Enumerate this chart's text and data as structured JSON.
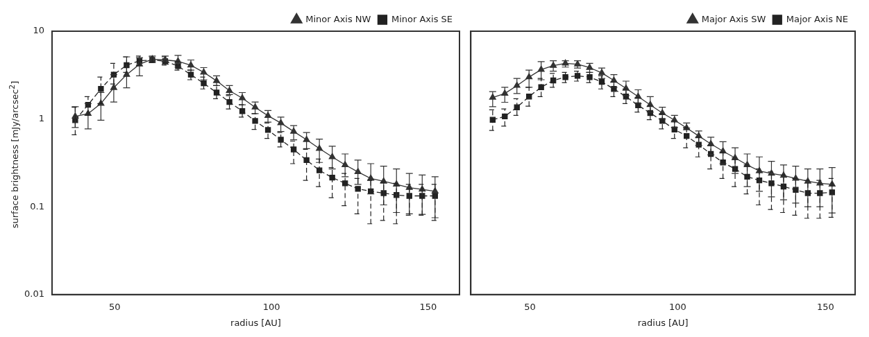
{
  "chart_data": [
    {
      "type": "line",
      "xlabel": "radius [AU]",
      "ylabel": "surface brightness [mJy/arcsec$^{2}$]",
      "xlim": [
        30,
        160
      ],
      "ylim": [
        0.01,
        10
      ],
      "xticks": [
        50,
        100,
        150
      ],
      "yticks": [
        0.01,
        0.1,
        1,
        10
      ],
      "log": "y",
      "grid": false,
      "legend": "top right",
      "x": [
        37.4,
        41.5,
        45.6,
        49.7,
        53.8,
        57.9,
        62,
        66.1,
        70.2,
        74.3,
        78.4,
        82.5,
        86.6,
        90.7,
        94.8,
        98.9,
        103,
        107.1,
        111.2,
        115.3,
        119.4,
        123.5,
        127.6,
        131.7,
        135.8,
        139.9,
        144,
        148.1,
        152.2
      ],
      "series": [
        {
          "name": "Minor Axis NW",
          "color": "#333333",
          "marker": "triangle",
          "line_style": "solid",
          "values": [
            1.07,
            1.15,
            1.5,
            2.27,
            3.2,
            4.2,
            4.8,
            4.7,
            4.55,
            4.1,
            3.4,
            2.72,
            2.1,
            1.73,
            1.36,
            1.09,
            0.9,
            0.72,
            0.58,
            0.46,
            0.37,
            0.3,
            0.25,
            0.21,
            0.195,
            0.18,
            0.165,
            0.158,
            0.15
          ],
          "errors": [
            [
              0.8,
              1.38
            ],
            [
              0.77,
              1.5
            ],
            [
              0.97,
              2
            ],
            [
              1.56,
              3.2
            ],
            [
              2.27,
              5.1
            ],
            [
              3.1,
              5
            ],
            [
              4.4,
              5.2
            ],
            [
              4.2,
              5.2
            ],
            [
              3.9,
              5.3
            ],
            [
              3.6,
              4.7
            ],
            [
              2.8,
              3.85
            ],
            [
              2.4,
              3.1
            ],
            [
              1.9,
              2.4
            ],
            [
              1.45,
              2
            ],
            [
              1.15,
              1.56
            ],
            [
              0.92,
              1.25
            ],
            [
              0.72,
              1.05
            ],
            [
              0.58,
              0.84
            ],
            [
              0.46,
              0.7
            ],
            [
              0.32,
              0.59
            ],
            [
              0.27,
              0.49
            ],
            [
              0.22,
              0.4
            ],
            [
              0.18,
              0.34
            ],
            [
              0.14,
              0.31
            ],
            [
              0.105,
              0.29
            ],
            [
              0.086,
              0.27
            ],
            [
              0.083,
              0.24
            ],
            [
              0.082,
              0.23
            ],
            [
              0.075,
              0.22
            ]
          ]
        },
        {
          "name": "Minor Axis SE",
          "color": "#222222",
          "marker": "square",
          "line_style": "dashed",
          "values": [
            0.97,
            1.45,
            2.2,
            3.2,
            4.1,
            4.6,
            4.7,
            4.55,
            4,
            3.2,
            2.55,
            2,
            1.56,
            1.23,
            0.95,
            0.75,
            0.58,
            0.45,
            0.34,
            0.26,
            0.215,
            0.185,
            0.16,
            0.15,
            0.143,
            0.136,
            0.133,
            0.133,
            0.133
          ],
          "errors": [
            [
              0.66,
              1.36
            ],
            [
              1.1,
              1.8
            ],
            [
              1.5,
              3
            ],
            [
              2.5,
              4.3
            ],
            [
              3.4,
              5.1
            ],
            [
              4.1,
              5.2
            ],
            [
              4.4,
              5.1
            ],
            [
              4.1,
              5.1
            ],
            [
              3.6,
              4.5
            ],
            [
              2.8,
              3.6
            ],
            [
              2.2,
              3
            ],
            [
              1.7,
              2.4
            ],
            [
              1.3,
              1.85
            ],
            [
              1.05,
              1.45
            ],
            [
              0.76,
              1.15
            ],
            [
              0.6,
              0.9
            ],
            [
              0.48,
              0.7
            ],
            [
              0.31,
              0.56
            ],
            [
              0.2,
              0.45
            ],
            [
              0.17,
              0.35
            ],
            [
              0.127,
              0.28
            ],
            [
              0.103,
              0.24
            ],
            [
              0.083,
              0.21
            ],
            [
              0.064,
              0.2
            ],
            [
              0.07,
              0.19
            ],
            [
              0.064,
              0.185
            ],
            [
              0.08,
              0.18
            ],
            [
              0.08,
              0.18
            ],
            [
              0.07,
              0.18
            ]
          ]
        }
      ]
    },
    {
      "type": "line",
      "xlabel": "radius [AU]",
      "xlim": [
        30,
        160
      ],
      "ylim": [
        0.01,
        10
      ],
      "xticks": [
        50,
        100,
        150
      ],
      "yticks": [
        0.01,
        0.1,
        1,
        10
      ],
      "log": "y",
      "grid": false,
      "legend": "top right",
      "tick_labels": "x",
      "x": [
        37.4,
        41.5,
        45.6,
        49.7,
        53.8,
        57.9,
        62,
        66.1,
        70.2,
        74.3,
        78.4,
        82.5,
        86.6,
        90.7,
        94.8,
        98.9,
        103,
        107.1,
        111.2,
        115.3,
        119.4,
        123.5,
        127.6,
        131.7,
        135.8,
        139.9,
        144,
        148.1,
        152.2
      ],
      "series": [
        {
          "name": "Major Axis SW",
          "color": "#333333",
          "marker": "triangle",
          "line_style": "solid",
          "values": [
            1.76,
            1.95,
            2.4,
            3,
            3.65,
            4.05,
            4.3,
            4.2,
            3.85,
            3.35,
            2.75,
            2.23,
            1.8,
            1.45,
            1.17,
            0.97,
            0.79,
            0.64,
            0.52,
            0.43,
            0.36,
            0.3,
            0.256,
            0.24,
            0.227,
            0.21,
            0.195,
            0.185,
            0.18
          ],
          "errors": [
            [
              1.38,
              2.05
            ],
            [
              1.55,
              2.3
            ],
            [
              1.95,
              2.9
            ],
            [
              2.3,
              3.6
            ],
            [
              2.8,
              4.5
            ],
            [
              3.5,
              4.6
            ],
            [
              3.9,
              4.6
            ],
            [
              3.8,
              4.6
            ],
            [
              3.4,
              4.3
            ],
            [
              2.9,
              3.8
            ],
            [
              2.3,
              3.2
            ],
            [
              1.85,
              2.7
            ],
            [
              1.5,
              2.15
            ],
            [
              1.2,
              1.8
            ],
            [
              1,
              1.36
            ],
            [
              0.8,
              1.1
            ],
            [
              0.79,
              0.9
            ],
            [
              0.5,
              0.73
            ],
            [
              0.39,
              0.62
            ],
            [
              0.31,
              0.55
            ],
            [
              0.24,
              0.47
            ],
            [
              0.17,
              0.4
            ],
            [
              0.15,
              0.37
            ],
            [
              0.13,
              0.33
            ],
            [
              0.12,
              0.3
            ],
            [
              0.11,
              0.29
            ],
            [
              0.1,
              0.27
            ],
            [
              0.1,
              0.27
            ],
            [
              0.085,
              0.28
            ]
          ]
        },
        {
          "name": "Major Axis NE",
          "color": "#222222",
          "marker": "square",
          "line_style": "dashed",
          "values": [
            0.98,
            1.07,
            1.36,
            1.8,
            2.3,
            2.75,
            3,
            3.1,
            3,
            2.65,
            2.2,
            1.8,
            1.43,
            1.17,
            0.95,
            0.76,
            0.64,
            0.51,
            0.4,
            0.32,
            0.27,
            0.22,
            0.2,
            0.185,
            0.17,
            0.156,
            0.143,
            0.143,
            0.146
          ],
          "errors": [
            [
              0.74,
              1.27
            ],
            [
              0.83,
              1.3
            ],
            [
              1.1,
              1.7
            ],
            [
              1.4,
              2.3
            ],
            [
              1.8,
              2.9
            ],
            [
              2.3,
              3.3
            ],
            [
              2.6,
              3.4
            ],
            [
              2.7,
              3.5
            ],
            [
              2.6,
              3.4
            ],
            [
              2.2,
              3.1
            ],
            [
              1.8,
              2.65
            ],
            [
              1.5,
              2.2
            ],
            [
              1.2,
              1.75
            ],
            [
              0.98,
              1.4
            ],
            [
              0.77,
              1.15
            ],
            [
              0.6,
              0.95
            ],
            [
              0.47,
              0.8
            ],
            [
              0.37,
              0.62
            ],
            [
              0.27,
              0.5
            ],
            [
              0.21,
              0.42
            ],
            [
              0.17,
              0.36
            ],
            [
              0.14,
              0.3
            ],
            [
              0.105,
              0.27
            ],
            [
              0.093,
              0.25
            ],
            [
              0.086,
              0.23
            ],
            [
              0.08,
              0.21
            ],
            [
              0.074,
              0.2
            ],
            [
              0.074,
              0.2
            ],
            [
              0.076,
              0.21
            ]
          ]
        }
      ]
    }
  ]
}
